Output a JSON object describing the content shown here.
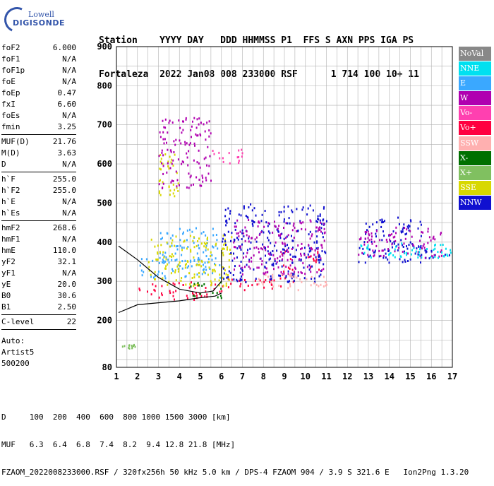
{
  "logo": {
    "line1": "Lowell",
    "line2": "DIGISONDE"
  },
  "header": {
    "line1": "Station    YYYY DAY   DDD HHMMSS P1  FFS S AXN PPS IGA PS",
    "line2": "Fortaleza  2022 Jan08 008 233000 RSF      1 714 100 10+ 11"
  },
  "params": [
    {
      "name": "foF2",
      "value": "6.000"
    },
    {
      "name": "foF1",
      "value": "N/A"
    },
    {
      "name": "foF1p",
      "value": "N/A"
    },
    {
      "name": "foE",
      "value": "N/A"
    },
    {
      "name": "foEp",
      "value": "0.47"
    },
    {
      "name": "fxI",
      "value": "6.60"
    },
    {
      "name": "foEs",
      "value": "N/A"
    },
    {
      "name": "fmin",
      "value": "3.25"
    },
    {
      "sep": true
    },
    {
      "name": "MUF(D)",
      "value": "21.76"
    },
    {
      "name": "M(D)",
      "value": "3.63"
    },
    {
      "name": "D",
      "value": "N/A"
    },
    {
      "sep": true
    },
    {
      "name": "h`F",
      "value": "255.0"
    },
    {
      "name": "h`F2",
      "value": "255.0"
    },
    {
      "name": "h`E",
      "value": "N/A"
    },
    {
      "name": "h`Es",
      "value": "N/A"
    },
    {
      "sep": true
    },
    {
      "name": "hmF2",
      "value": "268.6"
    },
    {
      "name": "hmF1",
      "value": "N/A"
    },
    {
      "name": "hmE",
      "value": "110.0"
    },
    {
      "name": "yF2",
      "value": "32.1"
    },
    {
      "name": "yF1",
      "value": "N/A"
    },
    {
      "name": "yE",
      "value": "20.0"
    },
    {
      "name": "B0",
      "value": "30.6"
    },
    {
      "name": "B1",
      "value": "2.50"
    },
    {
      "sep": true
    },
    {
      "name": "C-level",
      "value": "22"
    },
    {
      "sep": true
    }
  ],
  "auto": [
    "Auto:",
    "Artist5",
    "500200"
  ],
  "legend": [
    {
      "label": "NoVal",
      "color": "#888888"
    },
    {
      "label": "NNE",
      "color": "#00e0f0"
    },
    {
      "label": "E",
      "color": "#3aa8ff"
    },
    {
      "label": "W",
      "color": "#b000b0"
    },
    {
      "label": "Vo-",
      "color": "#ff40b0"
    },
    {
      "label": "Vo+",
      "color": "#ff0040"
    },
    {
      "label": "SSW",
      "color": "#ffb0b0"
    },
    {
      "label": "X-",
      "color": "#007000"
    },
    {
      "label": "X+",
      "color": "#80c060"
    },
    {
      "label": "SSE",
      "color": "#d8d800"
    },
    {
      "label": "NNW",
      "color": "#1010d0"
    }
  ],
  "footer": {
    "line1": "D     100  200  400  600  800 1000 1500 3000 [km]",
    "line2": "MUF   6.3  6.4  6.8  7.4  8.2  9.4 12.8 21.8 [MHz]",
    "line3": "FZAOM_2022008233000.RSF / 320fx256h 50 kHz 5.0 km / DPS-4 FZAOM 904 / 3.9 S 321.6 E   Ion2Png 1.3.20"
  },
  "chart_data": {
    "type": "scatter",
    "xlim": [
      1,
      17
    ],
    "ylim": [
      80,
      900
    ],
    "x_ticks": [
      1,
      2,
      3,
      4,
      5,
      6,
      7,
      8,
      9,
      10,
      11,
      12,
      13,
      14,
      15,
      16,
      17
    ],
    "y_ticks": [
      80,
      200,
      300,
      400,
      500,
      600,
      700,
      800,
      900
    ],
    "grid": true,
    "legend_placement": "right",
    "series": [
      {
        "name": "Vo+",
        "color": "#ff0040",
        "clusters": [
          {
            "x": [
              2.0,
              6.0
            ],
            "y": [
              255,
              300
            ]
          },
          {
            "x": [
              6.0,
              9.5
            ],
            "y": [
              280,
              310
            ]
          },
          {
            "x": [
              8.8,
              9.4
            ],
            "y": [
              310,
              380
            ]
          },
          {
            "x": [
              10.0,
              10.8
            ],
            "y": [
              330,
              400
            ]
          }
        ]
      },
      {
        "name": "E",
        "color": "#3aa8ff",
        "clusters": [
          {
            "x": [
              2.0,
              6.0
            ],
            "y": [
              310,
              360
            ]
          },
          {
            "x": [
              3.0,
              5.8
            ],
            "y": [
              350,
              440
            ]
          }
        ]
      },
      {
        "name": "SSE",
        "color": "#d8d800",
        "clusters": [
          {
            "x": [
              2.5,
              6.5
            ],
            "y": [
              290,
              420
            ]
          },
          {
            "x": [
              3.0,
              4.0
            ],
            "y": [
              520,
              640
            ]
          }
        ]
      },
      {
        "name": "NNW",
        "color": "#1010d0",
        "clusters": [
          {
            "x": [
              6.0,
              11.0
            ],
            "y": [
              300,
              500
            ]
          },
          {
            "x": [
              12.5,
              15.5
            ],
            "y": [
              350,
              470
            ]
          },
          {
            "x": [
              15.5,
              17.0
            ],
            "y": [
              360,
              385
            ]
          }
        ]
      },
      {
        "name": "W",
        "color": "#b000b0",
        "clusters": [
          {
            "x": [
              6.5,
              11.0
            ],
            "y": [
              320,
              460
            ]
          },
          {
            "x": [
              12.5,
              16.5
            ],
            "y": [
              360,
              440
            ]
          },
          {
            "x": [
              3.0,
              5.5
            ],
            "y": [
              540,
              720
            ]
          }
        ]
      },
      {
        "name": "X-",
        "color": "#007000",
        "clusters": [
          {
            "x": [
              4.5,
              6.0
            ],
            "y": [
              260,
              300
            ]
          }
        ]
      },
      {
        "name": "X+",
        "color": "#80c060",
        "clusters": [
          {
            "x": [
              1.2,
              1.9
            ],
            "y": [
              130,
              140
            ]
          }
        ]
      },
      {
        "name": "SSW",
        "color": "#ffb0b0",
        "clusters": [
          {
            "x": [
              7.5,
              11.0
            ],
            "y": [
              280,
              320
            ]
          }
        ]
      },
      {
        "name": "NNE",
        "color": "#00e0f0",
        "clusters": [
          {
            "x": [
              12.5,
              17.0
            ],
            "y": [
              360,
              400
            ]
          }
        ]
      },
      {
        "name": "Vo-",
        "color": "#ff40b0",
        "clusters": [
          {
            "x": [
              5.5,
              7.0
            ],
            "y": [
              600,
              640
            ]
          }
        ]
      }
    ],
    "profile_curve": {
      "color": "#000000",
      "lower": [
        [
          1.1,
          220
        ],
        [
          2,
          240
        ],
        [
          3,
          245
        ],
        [
          4,
          250
        ],
        [
          5,
          258
        ],
        [
          5.7,
          262
        ],
        [
          6.0,
          270
        ]
      ],
      "upper": [
        [
          1.1,
          390
        ],
        [
          2,
          355
        ],
        [
          3,
          310
        ],
        [
          4,
          280
        ],
        [
          5,
          270
        ],
        [
          5.6,
          275
        ],
        [
          6.0,
          300
        ],
        [
          6.0,
          380
        ]
      ]
    }
  }
}
